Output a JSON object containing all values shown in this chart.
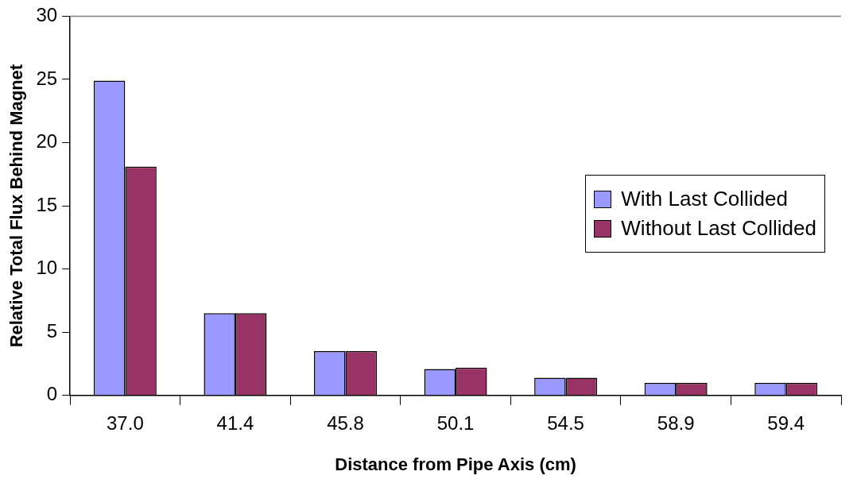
{
  "chart_data": {
    "type": "bar",
    "xlabel": "Distance from Pipe Axis (cm)",
    "ylabel": "Relative Total Flux Behind Magnet",
    "categories": [
      "37.0",
      "41.4",
      "45.8",
      "50.1",
      "54.5",
      "58.9",
      "59.4"
    ],
    "series": [
      {
        "name": "With Last Collided",
        "color": "#9999ff",
        "values": [
          24.9,
          6.5,
          3.5,
          2.1,
          1.4,
          1.0,
          1.0
        ]
      },
      {
        "name": "Without Last Collided",
        "color": "#993366",
        "values": [
          18.1,
          6.5,
          3.5,
          2.2,
          1.4,
          1.0,
          1.0
        ]
      }
    ],
    "ylim": [
      0,
      30
    ],
    "yticks": [
      0,
      5,
      10,
      15,
      20,
      25,
      30
    ],
    "grid": false,
    "legend": "right"
  }
}
